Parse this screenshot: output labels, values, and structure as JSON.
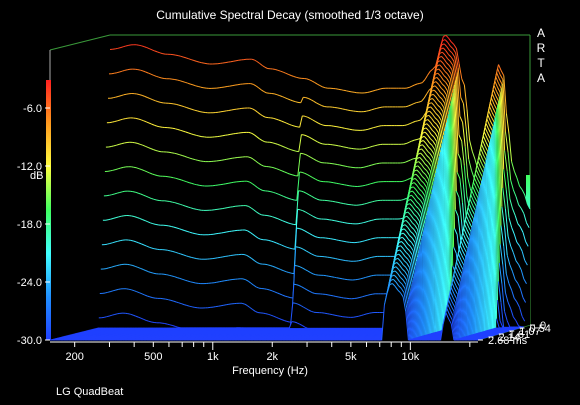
{
  "chart_data": {
    "type": "area",
    "title": "Cumulative Spectral Decay (smoothed 1/3 octave)",
    "xlabel": "Frequency (Hz)",
    "ylabel": "dB",
    "zlabel_unit": "ms",
    "x_scale": "log",
    "xlim": [
      150,
      22000
    ],
    "ylim": [
      -30,
      0
    ],
    "zlim": [
      0,
      2.68
    ],
    "x_ticks": [
      "200",
      "500",
      "1k",
      "2k",
      "5k",
      "10k"
    ],
    "y_ticks": [
      "-6.0",
      "-12.0",
      "-18.0",
      "-24.0",
      "-30.0"
    ],
    "z_ticks": [
      "0",
      "0.54",
      "1.07",
      "1.61",
      "2.14",
      "2.68 ms"
    ],
    "colormap": [
      "#ff2020",
      "#ff9a1e",
      "#ffff40",
      "#40ff60",
      "#40ffff",
      "#2090ff",
      "#2040ff"
    ],
    "initial_response": {
      "frequency_hz": [
        150,
        200,
        300,
        500,
        800,
        1000,
        1500,
        2000,
        3000,
        4000,
        5000,
        6000,
        7000,
        8000,
        9000,
        10000,
        11000,
        12000,
        13000,
        14000,
        15000,
        16000,
        17000,
        18000,
        20000,
        22000
      ],
      "level_db": [
        -1.5,
        -1.0,
        -2.0,
        -3.0,
        -2.5,
        -3.5,
        -4.5,
        -5.5,
        -6.0,
        -5.5,
        -5.5,
        -5.0,
        -3.5,
        0.0,
        -1.0,
        -5.0,
        -12.0,
        -14.0,
        -12.0,
        -8.0,
        -3.0,
        -4.0,
        -10.0,
        -14.0,
        -16.0,
        -18.0
      ]
    }
  },
  "brand": [
    "A",
    "R",
    "T",
    "A"
  ],
  "footer": "LG QuadBeat"
}
